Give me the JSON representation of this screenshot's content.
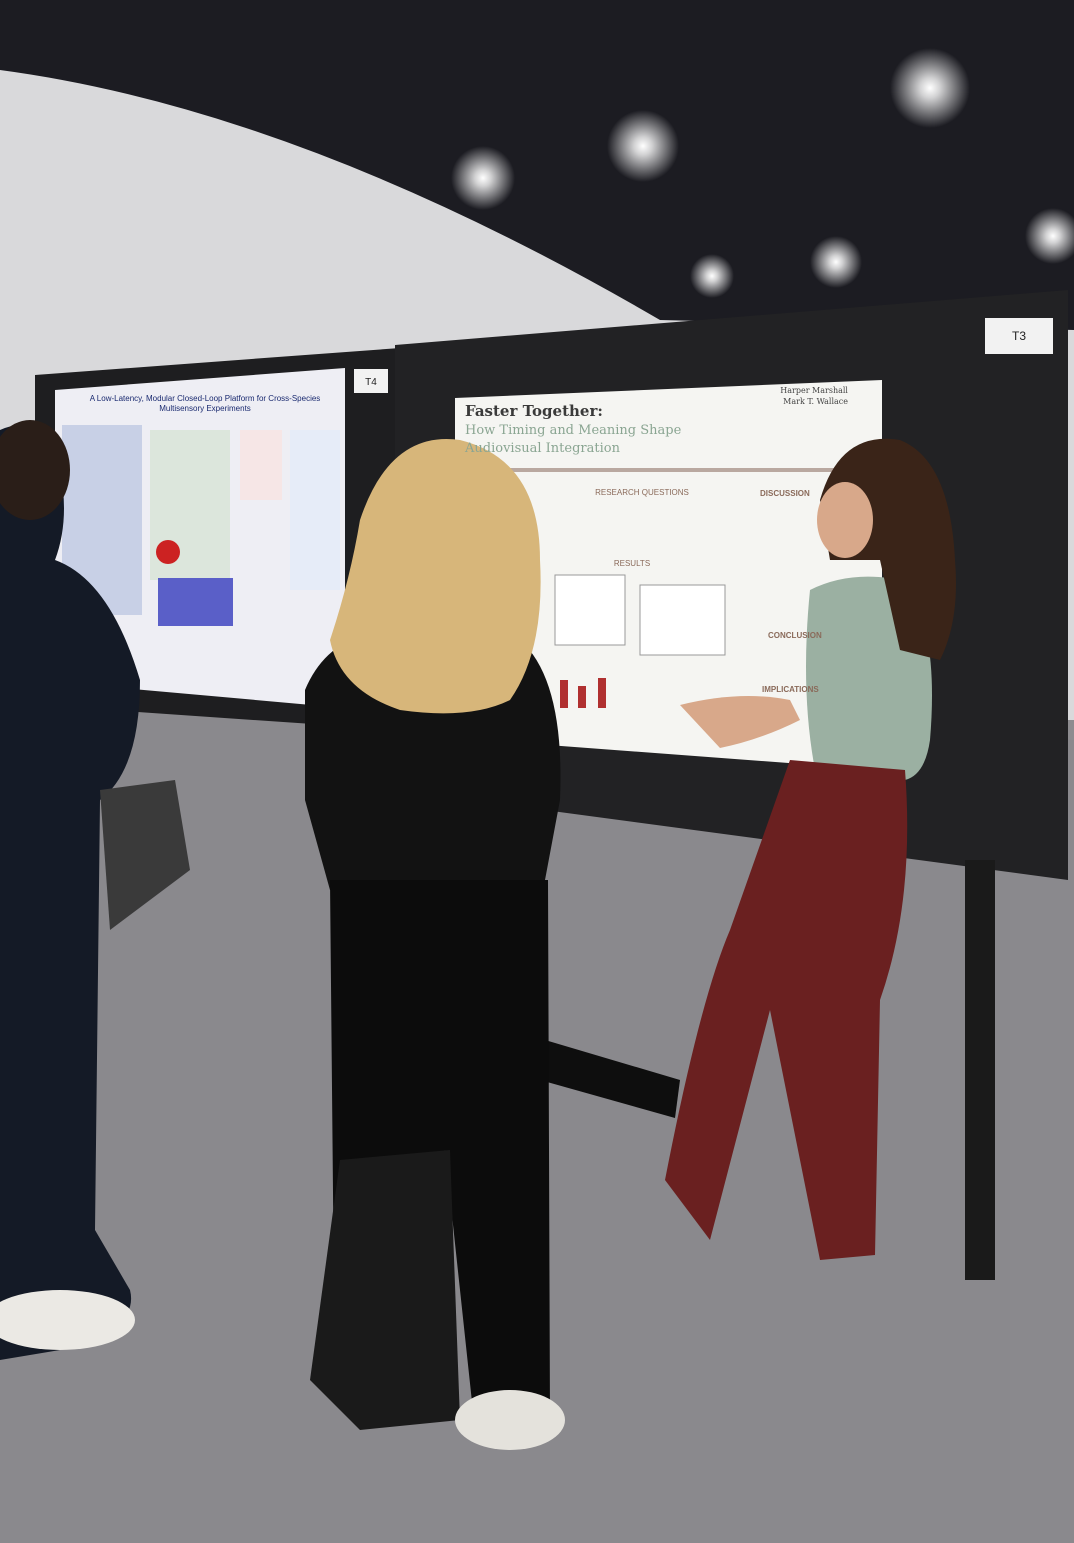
{
  "board_labels": {
    "left": "T4",
    "right": "T3"
  },
  "left_poster": {
    "title_lines": [
      "A Low-Latency, Modular Closed-Loop Platform for Cross-Species",
      "Multisensory Experiments"
    ]
  },
  "right_poster": {
    "title": "Faster Together:",
    "subtitle_lines": [
      "How Timing and Meaning Shape",
      "Audiovisual Integration"
    ],
    "authors": [
      "Harper Marshall",
      "Mark T. Wallace"
    ],
    "sections": [
      "RESEARCH QUESTIONS",
      "RESULTS",
      "DISCUSSION",
      "CONCLUSION",
      "IMPLICATIONS"
    ]
  }
}
